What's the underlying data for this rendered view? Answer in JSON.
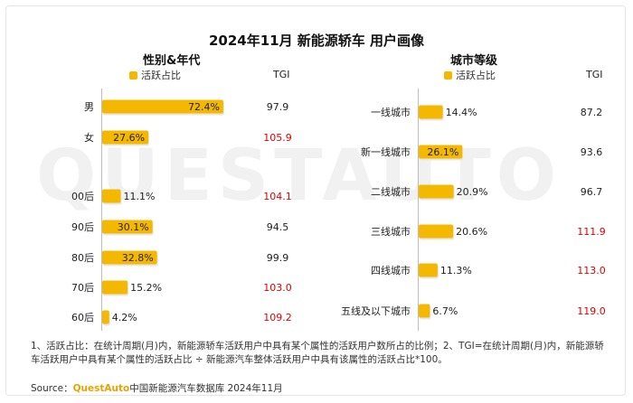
{
  "title": "2024年11月 新能源轿车 用户画像",
  "watermark": "QUESTAUTO",
  "colors": {
    "bar": "#F5B800",
    "tgi_high": "#E00000",
    "tgi_normal": "#222222"
  },
  "tgi_header": "TGI",
  "legend_label": "活跃占比",
  "chart_data": [
    {
      "type": "bar",
      "orientation": "horizontal",
      "title": "性别&年代",
      "legend": "活跃占比",
      "categories": [
        "男",
        "女",
        "00后",
        "90后",
        "80后",
        "70后",
        "60后"
      ],
      "values": [
        72.4,
        27.6,
        11.1,
        30.1,
        32.8,
        15.2,
        4.2
      ],
      "value_labels": [
        "72.4%",
        "27.6%",
        "11.1%",
        "30.1%",
        "32.8%",
        "15.2%",
        "4.2%"
      ],
      "tgi": [
        "97.9",
        "105.9",
        "104.1",
        "94.5",
        "99.9",
        "103.0",
        "109.2"
      ],
      "xlim": [
        0,
        100
      ]
    },
    {
      "type": "bar",
      "orientation": "horizontal",
      "title": "城市等级",
      "legend": "活跃占比",
      "categories": [
        "一线城市",
        "新一线城市",
        "二线城市",
        "三线城市",
        "四线城市",
        "五线及以下城市"
      ],
      "values": [
        14.4,
        26.1,
        20.9,
        20.6,
        11.3,
        6.7
      ],
      "value_labels": [
        "14.4%",
        "26.1%",
        "20.9%",
        "20.6%",
        "11.3%",
        "6.7%"
      ],
      "tgi": [
        "87.2",
        "93.6",
        "96.7",
        "111.9",
        "113.0",
        "119.0"
      ],
      "xlim": [
        0,
        100
      ]
    }
  ],
  "footnote": "1、活跃占比：在统计周期(月)内，新能源轿车活跃用户中具有某个属性的活跃用户数所占的比例；2、TGI=在统计周期(月)内，新能源轿车活跃用户中具有某个属性的活跃占比 ÷ 新能源汽车整体活跃用户中具有该属性的活跃占比*100。",
  "source": {
    "label": "Source：",
    "brand": "QuestAuto",
    "text": "中国新能源汽车数据库 2024年11月"
  }
}
